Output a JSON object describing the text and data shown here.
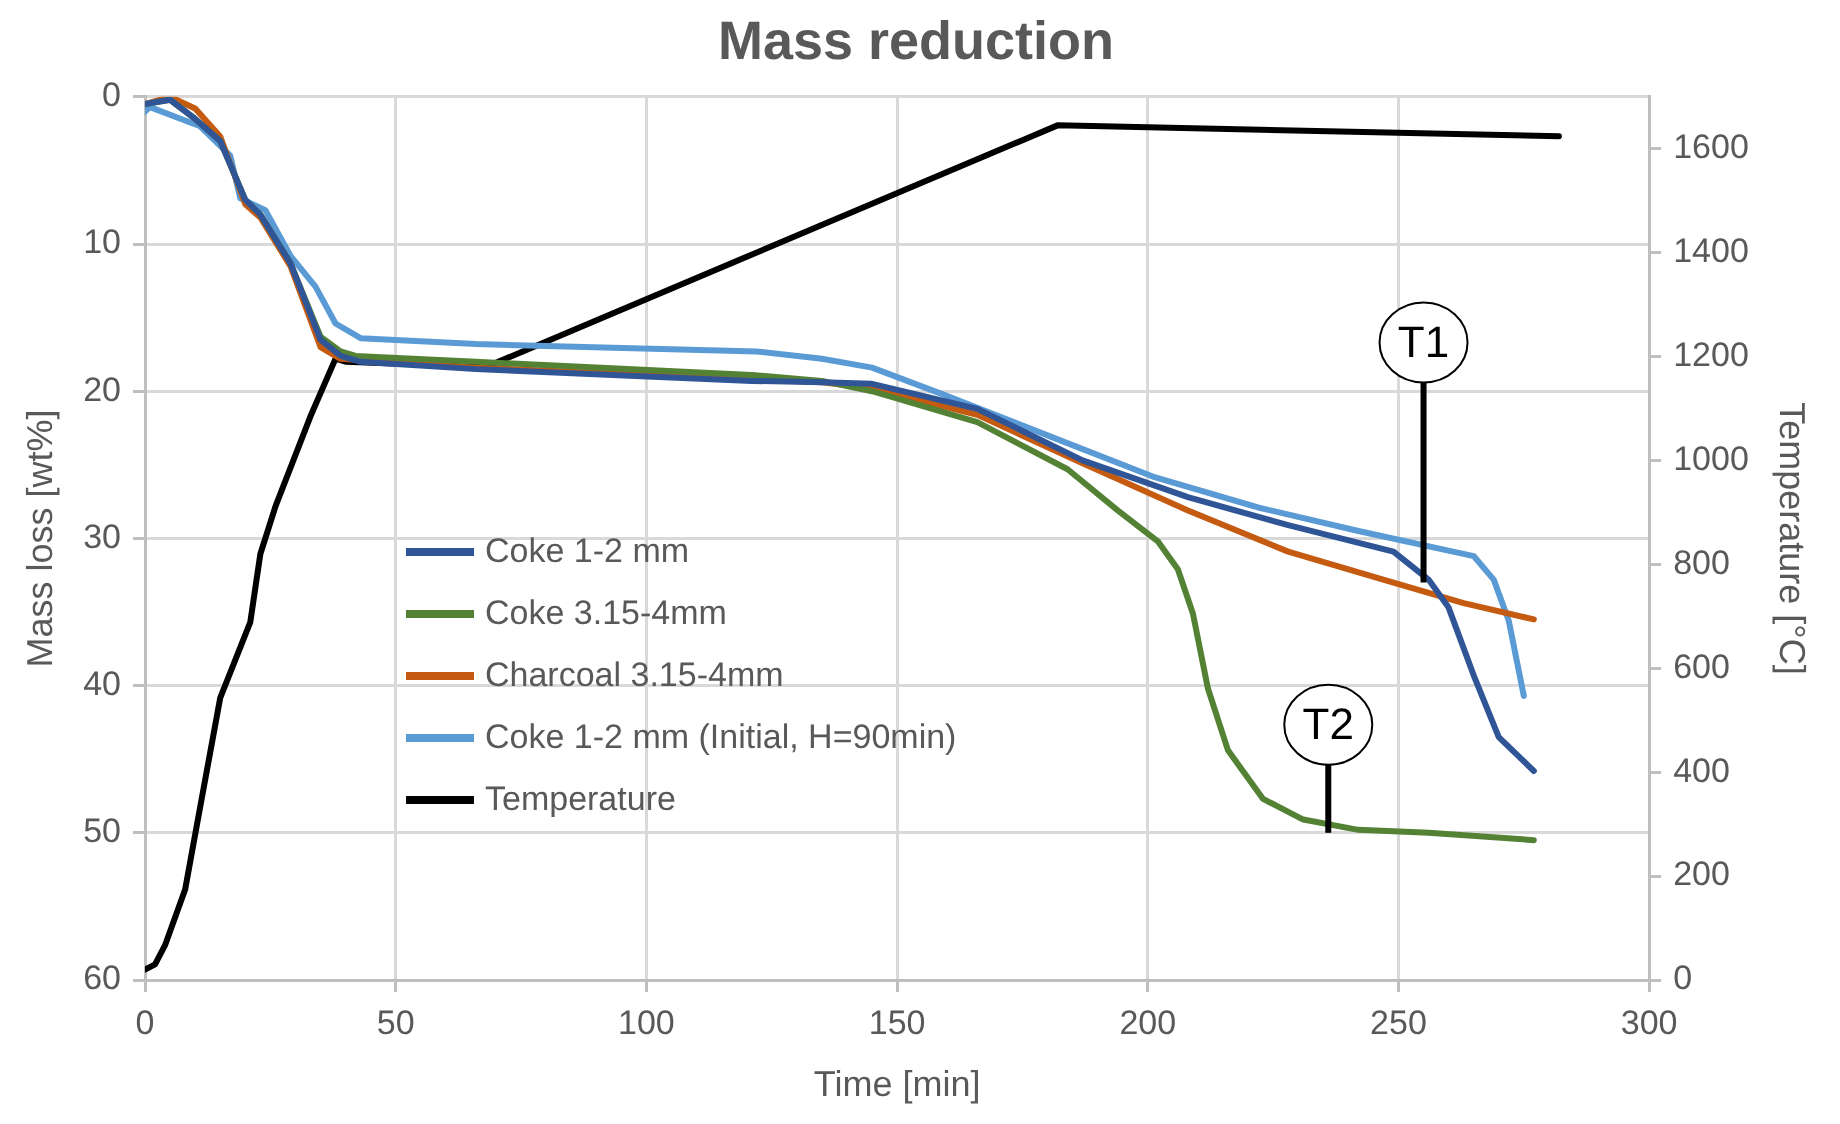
{
  "chart_data": {
    "type": "line",
    "title": "Mass reduction",
    "xlabel": "Time [min]",
    "ylabel": "Mass loss [wt%]",
    "y2label": "Temperature [°C]",
    "xlim": [
      0,
      300
    ],
    "xticks": [
      0,
      50,
      100,
      150,
      200,
      250,
      300
    ],
    "ylim": [
      60,
      0
    ],
    "yticks": [
      0,
      10,
      20,
      30,
      40,
      50,
      60
    ],
    "y2lim": [
      0,
      1700
    ],
    "y2ticks": [
      0,
      200,
      400,
      600,
      800,
      1000,
      1200,
      1400,
      1600
    ],
    "grid": true,
    "legend": "left",
    "marker": "none",
    "line_style": "solid",
    "annotations": [
      {
        "text": "T1",
        "x": 255,
        "y": 33
      },
      {
        "text": "T2",
        "x": 236,
        "y": 50
      }
    ],
    "series": [
      {
        "name": "Coke 1-2 mm",
        "color": "#2f5597",
        "x": [
          0,
          5,
          10,
          15,
          20,
          23,
          29,
          35,
          39,
          43,
          66,
          121,
          135,
          145,
          166,
          187,
          208,
          228,
          249,
          256,
          260,
          265,
          270,
          277
        ],
        "values": [
          0.5,
          0.2,
          1.5,
          3,
          7,
          8,
          11.3,
          16.5,
          17.6,
          18,
          18.5,
          19.3,
          19.4,
          19.5,
          21.2,
          24.7,
          27.2,
          29.1,
          30.9,
          32.8,
          34.7,
          39.3,
          43.5,
          45.8
        ]
      },
      {
        "name": "Coke 3.15-4mm",
        "color": "#548235",
        "x": [
          0,
          5,
          10,
          15,
          20,
          23,
          29,
          35,
          39,
          42,
          66,
          121,
          135,
          145,
          166,
          184,
          194,
          202,
          206,
          209,
          212,
          216,
          223,
          231,
          242,
          256,
          277
        ],
        "values": [
          0.5,
          0.2,
          1.5,
          3,
          7,
          8,
          11.3,
          16.3,
          17.3,
          17.6,
          18,
          18.9,
          19.3,
          20,
          22.1,
          25.3,
          28.1,
          30.2,
          32.1,
          35.1,
          40.2,
          44.4,
          47.7,
          49.1,
          49.8,
          50,
          50.5
        ]
      },
      {
        "name": "Charcoal 3.15-4mm",
        "color": "#c55a11",
        "x": [
          0,
          5,
          10,
          15,
          20,
          23,
          29,
          35,
          39,
          66,
          121,
          135,
          145,
          166,
          187,
          208,
          228,
          249,
          263,
          277
        ],
        "values": [
          0.5,
          0,
          0.8,
          2.7,
          7.3,
          8.2,
          11.5,
          17,
          17.8,
          18.4,
          19.2,
          19.4,
          19.8,
          21.6,
          24.9,
          28.1,
          30.9,
          33,
          34.4,
          35.5
        ]
      },
      {
        "name": "Coke 1-2 mm (Initial, H=90min)",
        "color": "#5b9bd5",
        "x": [
          0,
          1,
          11,
          17,
          19,
          24,
          29,
          34,
          38,
          43,
          66,
          122,
          135,
          145,
          159,
          180,
          201,
          222,
          242,
          265,
          269,
          272,
          275
        ],
        "values": [
          1,
          0.7,
          2,
          4,
          6.9,
          7.7,
          10.8,
          12.9,
          15.4,
          16.4,
          16.8,
          17.3,
          17.8,
          18.4,
          20.2,
          23,
          25.8,
          27.9,
          29.5,
          31.2,
          32.8,
          35.6,
          40.7
        ]
      },
      {
        "name": "Temperature",
        "color": "#000000",
        "axis": "y2",
        "x": [
          0,
          2,
          4,
          8,
          11,
          15,
          21,
          23,
          26,
          33,
          38,
          40,
          68,
          182,
          282
        ],
        "values": [
          20,
          30,
          67,
          174,
          333,
          543,
          689,
          820,
          911,
          1085,
          1196,
          1190,
          1180,
          1645,
          1624
        ]
      }
    ]
  }
}
